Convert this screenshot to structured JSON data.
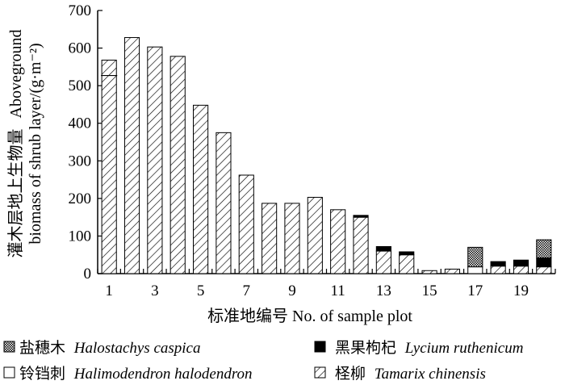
{
  "chart_data": {
    "type": "bar",
    "stacked": true,
    "xlabel": "标准地编号 No. of sample plot",
    "ylabel_cn": "灌木层地上生物量",
    "ylabel_en_1": "Aboveground",
    "ylabel_en_2": "biomass of shrub layer/(g·m⁻²)",
    "ylim": [
      0,
      700
    ],
    "yticks": [
      0,
      100,
      200,
      300,
      400,
      500,
      600,
      700
    ],
    "xtick_labels": [
      "1",
      "3",
      "5",
      "7",
      "9",
      "11",
      "13",
      "15",
      "17",
      "19"
    ],
    "x": [
      1,
      2,
      3,
      4,
      5,
      6,
      7,
      8,
      9,
      10,
      11,
      12,
      13,
      14,
      15,
      16,
      17,
      18,
      19,
      20
    ],
    "series": [
      {
        "key": "tamarix",
        "name_cn": "柽柳",
        "name_en": "Tamarix chinensis",
        "pattern": "hatch",
        "values": [
          568,
          628,
          603,
          578,
          448,
          375,
          262,
          187,
          187,
          203,
          170,
          150,
          60,
          50,
          8,
          12,
          0,
          20,
          20,
          18
        ]
      },
      {
        "key": "halimodendron",
        "name_cn": "铃铛刺",
        "name_en": "Halimodendron halodendron",
        "pattern": "white",
        "values": [
          0,
          0,
          0,
          0,
          0,
          0,
          0,
          0,
          0,
          0,
          0,
          0,
          0,
          0,
          0,
          0,
          18,
          0,
          0,
          0
        ]
      },
      {
        "key": "lycium",
        "name_cn": "黑果枸杞",
        "name_en": "Lycium ruthenicum",
        "pattern": "black",
        "values": [
          0,
          0,
          0,
          0,
          0,
          0,
          0,
          0,
          0,
          0,
          0,
          5,
          12,
          8,
          0,
          0,
          0,
          12,
          16,
          24
        ]
      },
      {
        "key": "halostachys",
        "name_cn": "盐穗木",
        "name_en": "Halostachys caspica",
        "pattern": "dots",
        "values": [
          0,
          0,
          0,
          0,
          0,
          0,
          0,
          0,
          0,
          0,
          0,
          0,
          0,
          0,
          0,
          0,
          52,
          0,
          0,
          48
        ]
      }
    ],
    "annotations": [
      {
        "x": 1,
        "y": 527,
        "text": ""
      }
    ],
    "legend": {
      "placement": "bottom",
      "order": [
        "halostachys",
        "lycium",
        "halimodendron",
        "tamarix"
      ]
    },
    "grid": false
  }
}
